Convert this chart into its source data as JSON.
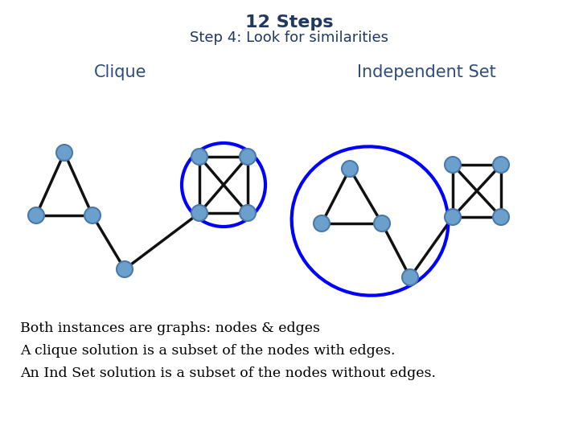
{
  "title": "12 Steps",
  "subtitle": "Step 4: Look for similarities",
  "title_color": "#1F3864",
  "subtitle_color": "#1F3864",
  "clique_label": "Clique",
  "indset_label": "Independent Set",
  "label_color": "#2E4D7B",
  "node_color": "#6B9FCC",
  "node_edge_color": "#4A7AAA",
  "edge_color": "#111111",
  "highlight_color": "#0000FF",
  "body_text": [
    "Both instances are graphs: nodes & edges",
    "A clique solution is a subset of the nodes with edges.",
    "An Ind Set solution is a subset of the nodes without edges."
  ],
  "body_color": "#000000",
  "bg_color": "#FFFFFF"
}
